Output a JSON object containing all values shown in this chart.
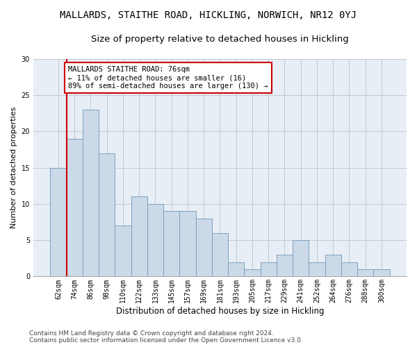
{
  "title": "MALLARDS, STAITHE ROAD, HICKLING, NORWICH, NR12 0YJ",
  "subtitle": "Size of property relative to detached houses in Hickling",
  "xlabel": "Distribution of detached houses by size in Hickling",
  "ylabel": "Number of detached properties",
  "categories": [
    "62sqm",
    "74sqm",
    "86sqm",
    "98sqm",
    "110sqm",
    "122sqm",
    "133sqm",
    "145sqm",
    "157sqm",
    "169sqm",
    "181sqm",
    "193sqm",
    "205sqm",
    "217sqm",
    "229sqm",
    "241sqm",
    "252sqm",
    "264sqm",
    "276sqm",
    "288sqm",
    "300sqm"
  ],
  "values": [
    15,
    19,
    23,
    17,
    7,
    11,
    10,
    9,
    9,
    8,
    6,
    2,
    1,
    2,
    3,
    5,
    2,
    3,
    2,
    1,
    1
  ],
  "bar_color": "#ccd9e8",
  "bar_edge_color": "#7aa0be",
  "highlight_line_color": "#cc0000",
  "annotation_text": "MALLARDS STAITHE ROAD: 76sqm\n← 11% of detached houses are smaller (16)\n89% of semi-detached houses are larger (130) →",
  "annotation_box_color": "#ffffff",
  "annotation_box_edge_color": "#cc0000",
  "ylim": [
    0,
    30
  ],
  "yticks": [
    0,
    5,
    10,
    15,
    20,
    25,
    30
  ],
  "footer_line1": "Contains HM Land Registry data © Crown copyright and database right 2024.",
  "footer_line2": "Contains public sector information licensed under the Open Government Licence v3.0.",
  "background_color": "#ffffff",
  "plot_bg_color": "#e8eef5",
  "grid_color": "#c0c8d4",
  "title_fontsize": 10,
  "subtitle_fontsize": 9.5,
  "xlabel_fontsize": 8.5,
  "ylabel_fontsize": 8,
  "tick_fontsize": 7,
  "annotation_fontsize": 7.5,
  "footer_fontsize": 6.5
}
